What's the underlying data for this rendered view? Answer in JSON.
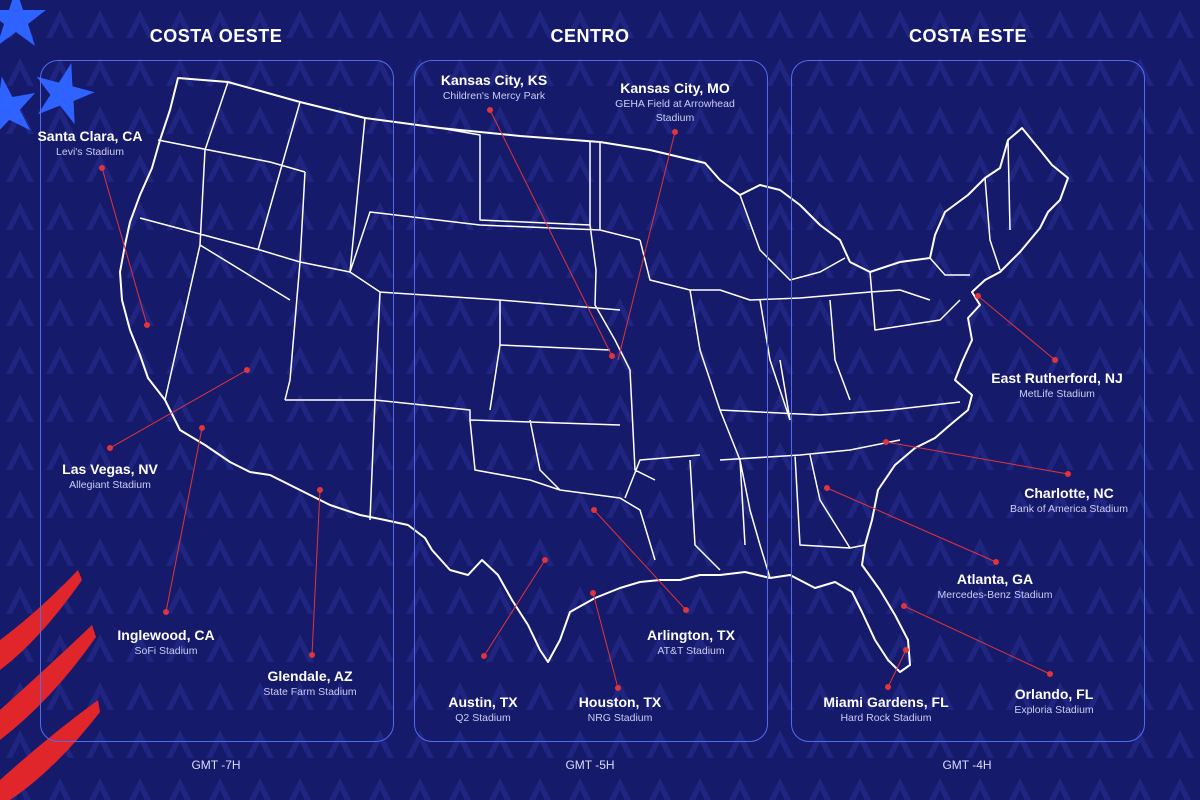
{
  "regions": [
    {
      "title": "COSTA OESTE",
      "gmt": "GMT -7H"
    },
    {
      "title": "CENTRO",
      "gmt": "GMT -5H"
    },
    {
      "title": "COSTA ESTE",
      "gmt": "GMT -4H"
    }
  ],
  "cities": [
    {
      "name": "Santa Clara, CA",
      "venue": "Levi's Stadium"
    },
    {
      "name": "Las Vegas, NV",
      "venue": "Allegiant Stadium"
    },
    {
      "name": "Inglewood, CA",
      "venue": "SoFi Stadium"
    },
    {
      "name": "Glendale, AZ",
      "venue": "State Farm Stadium"
    },
    {
      "name": "Kansas City, KS",
      "venue": "Children's Mercy Park"
    },
    {
      "name": "Kansas City, MO",
      "venue": "GEHA Field at Arrowhead Stadium"
    },
    {
      "name": "Austin, TX",
      "venue": "Q2 Stadium"
    },
    {
      "name": "Houston, TX",
      "venue": "NRG Stadium"
    },
    {
      "name": "Arlington, TX",
      "venue": "AT&T Stadium"
    },
    {
      "name": "East Rutherford, NJ",
      "venue": "MetLife Stadium"
    },
    {
      "name": "Charlotte, NC",
      "venue": "Bank of America Stadium"
    },
    {
      "name": "Atlanta, GA",
      "venue": "Mercedes-Benz Stadium"
    },
    {
      "name": "Miami Gardens, FL",
      "venue": "Hard Rock Stadium"
    },
    {
      "name": "Orlando, FL",
      "venue": "Exploria Stadium"
    }
  ],
  "colors": {
    "background": "#161a6b",
    "pattern": "#232a85",
    "panel_border": "#4d6cf0",
    "map_outline": "#ffffff",
    "leader_line": "#e0353a",
    "star": "#2f63ff",
    "stripe": "#e0262b"
  }
}
